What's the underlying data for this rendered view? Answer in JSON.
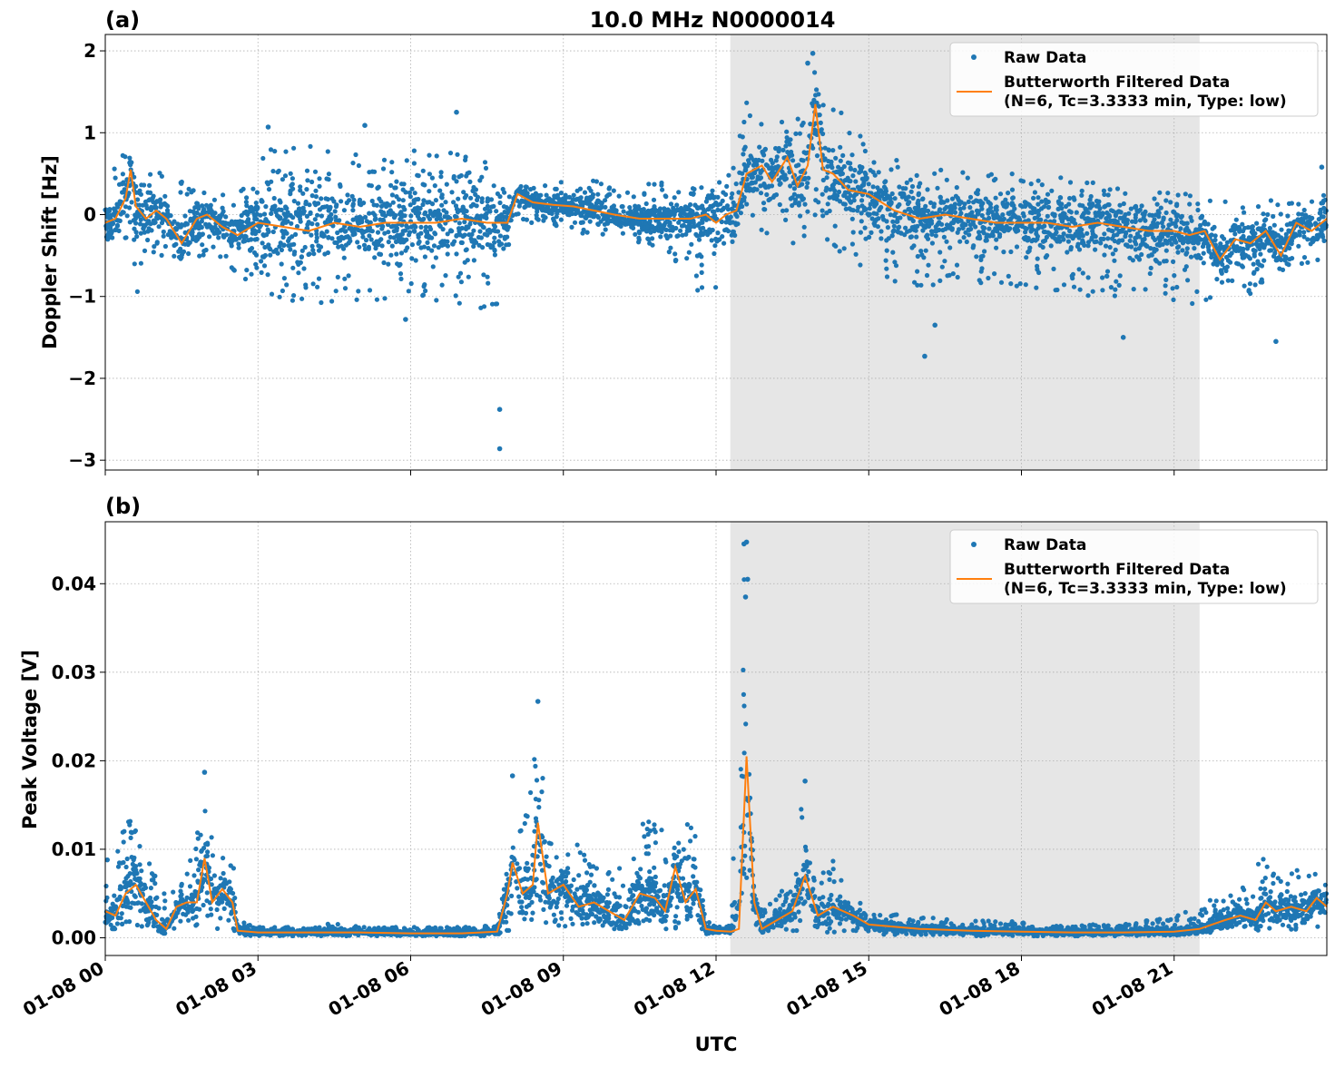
{
  "figure": {
    "title": "10.0 MHz N0000014",
    "xlabel": "UTC",
    "x_ticks": [
      "01-08 00",
      "01-08 03",
      "01-08 06",
      "01-08 09",
      "01-08 12",
      "01-08 15",
      "01-08 18",
      "01-08 21"
    ],
    "colors": {
      "raw": "#1f77b4",
      "filtered": "#ff7f0e",
      "shade": "#e6e6e6"
    }
  },
  "chart_data": [
    {
      "type": "scatter",
      "panel_label": "(a)",
      "ylabel": "Doppler Shift [Hz]",
      "xlim_hours": [
        0,
        24
      ],
      "ylim": [
        -3.12,
        2.2
      ],
      "y_ticks": [
        2,
        1,
        0,
        -1,
        -2,
        -3
      ],
      "y_tick_labels": [
        "2",
        "1",
        "0",
        "−1",
        "−2",
        "−3"
      ],
      "grid": true,
      "legend": {
        "placement": "top-right",
        "raw_label": "Raw Data",
        "filtered_line1": "Butterworth Filtered Data",
        "filtered_line2": "(N=6, Tc=3.3333 min, Type: low)"
      },
      "shaded_region_hours": [
        12.28,
        21.5
      ],
      "series": [
        {
          "name": "Raw Data",
          "style": "dots",
          "envelope": {
            "x": [
              0,
              0.4,
              0.6,
              1,
              1.5,
              2,
              2.6,
              3,
              4,
              5,
              6,
              7,
              7.7,
              8,
              8.5,
              9,
              10,
              11,
              11.7,
              12,
              12.3,
              12.6,
              13,
              13.5,
              14,
              14.5,
              15,
              16,
              17,
              18,
              19,
              20,
              21,
              21.5,
              22,
              22.5,
              23,
              24
            ],
            "upper": [
              0.4,
              0.82,
              0.5,
              0.55,
              0.4,
              0.3,
              0.2,
              0.8,
              0.85,
              0.75,
              0.8,
              0.75,
              0.6,
              0.45,
              0.35,
              0.4,
              0.45,
              0.4,
              0.35,
              0.6,
              0.7,
              1.4,
              1.2,
              1.1,
              1.9,
              1.2,
              0.9,
              0.6,
              0.5,
              0.5,
              0.45,
              0.35,
              0.35,
              0.2,
              0.2,
              0.1,
              0.2,
              0.3
            ],
            "lower": [
              -0.5,
              -0.3,
              -1.0,
              -0.5,
              -0.6,
              -0.6,
              -0.7,
              -1.0,
              -1.1,
              -1.1,
              -1.0,
              -1.1,
              -1.2,
              -0.1,
              -0.1,
              -0.2,
              -0.3,
              -0.4,
              -1.0,
              -0.9,
              -0.9,
              0.1,
              -0.3,
              -0.4,
              -0.2,
              -0.5,
              -0.8,
              -0.9,
              -0.9,
              -0.9,
              -1.0,
              -1.0,
              -1.1,
              -1.1,
              -0.9,
              -1.0,
              -0.7,
              -0.6
            ]
          },
          "outliers": [
            [
              7.75,
              -2.38
            ],
            [
              7.75,
              -2.86
            ],
            [
              6.9,
              1.25
            ],
            [
              3.2,
              1.07
            ],
            [
              5.1,
              1.09
            ],
            [
              13.9,
              1.97
            ],
            [
              13.8,
              1.85
            ],
            [
              16.1,
              -1.73
            ],
            [
              20.0,
              -1.5
            ],
            [
              23.0,
              -1.55
            ],
            [
              23.9,
              0.58
            ],
            [
              16.3,
              -1.35
            ],
            [
              5.9,
              -1.28
            ]
          ]
        },
        {
          "name": "Butterworth Filtered Data",
          "style": "line",
          "x": [
            0,
            0.2,
            0.4,
            0.5,
            0.6,
            0.8,
            1,
            1.2,
            1.5,
            1.8,
            2,
            2.3,
            2.6,
            3,
            3.5,
            4,
            4.5,
            5,
            5.5,
            6,
            6.5,
            7,
            7.5,
            7.9,
            8.1,
            8.4,
            8.8,
            9.2,
            9.6,
            10,
            10.5,
            11,
            11.5,
            11.8,
            12,
            12.2,
            12.4,
            12.6,
            12.9,
            13.1,
            13.4,
            13.6,
            13.8,
            13.95,
            14.1,
            14.3,
            14.6,
            15,
            15.5,
            16,
            16.5,
            17,
            17.5,
            18,
            18.5,
            19,
            19.5,
            20,
            20.5,
            21,
            21.3,
            21.6,
            21.9,
            22.2,
            22.5,
            22.8,
            23.1,
            23.4,
            23.7,
            24
          ],
          "y": [
            -0.1,
            -0.05,
            0.2,
            0.55,
            0.1,
            -0.05,
            0.05,
            -0.05,
            -0.35,
            -0.05,
            0.0,
            -0.15,
            -0.25,
            -0.1,
            -0.15,
            -0.2,
            -0.1,
            -0.15,
            -0.1,
            -0.1,
            -0.1,
            -0.05,
            -0.1,
            -0.1,
            0.25,
            0.15,
            0.12,
            0.1,
            0.05,
            0.0,
            -0.05,
            -0.05,
            -0.05,
            0.0,
            -0.1,
            0.0,
            0.05,
            0.5,
            0.6,
            0.4,
            0.7,
            0.35,
            0.6,
            1.35,
            0.55,
            0.5,
            0.3,
            0.25,
            0.05,
            -0.05,
            0.0,
            -0.05,
            -0.1,
            -0.1,
            -0.1,
            -0.15,
            -0.1,
            -0.15,
            -0.2,
            -0.2,
            -0.25,
            -0.2,
            -0.55,
            -0.3,
            -0.35,
            -0.2,
            -0.5,
            -0.1,
            -0.2,
            -0.05
          ]
        }
      ]
    },
    {
      "type": "scatter",
      "panel_label": "(b)",
      "ylabel": "Peak Voltage [V]",
      "xlim_hours": [
        0,
        24
      ],
      "ylim": [
        -0.002,
        0.047
      ],
      "y_ticks": [
        0.04,
        0.03,
        0.02,
        0.01,
        0.0
      ],
      "y_tick_labels": [
        "0.04",
        "0.03",
        "0.02",
        "0.01",
        "0.00"
      ],
      "grid": true,
      "legend": {
        "placement": "top-right",
        "raw_label": "Raw Data",
        "filtered_line1": "Butterworth Filtered Data",
        "filtered_line2": "(N=6, Tc=3.3333 min, Type: low)"
      },
      "shaded_region_hours": [
        12.28,
        21.5
      ],
      "series": [
        {
          "name": "Raw Data",
          "style": "dots",
          "envelope": {
            "x": [
              0,
              0.3,
              0.5,
              0.8,
              1,
              1.2,
              1.5,
              1.7,
              1.9,
              2.1,
              2.3,
              2.5,
              2.6,
              3,
              4,
              4.6,
              5,
              6,
              7,
              7.7,
              8,
              8.3,
              8.5,
              8.7,
              9,
              9.3,
              9.6,
              10,
              10.3,
              10.6,
              10.9,
              11.1,
              11.3,
              11.6,
              11.8,
              12,
              12.3,
              12.5,
              12.6,
              12.7,
              12.9,
              13.2,
              13.5,
              13.7,
              13.9,
              14.2,
              14.5,
              15,
              16,
              17,
              18,
              19,
              20,
              21,
              21.5,
              22,
              22.5,
              22.8,
              23,
              23.3,
              23.6,
              24
            ],
            "upper": [
              0.009,
              0.012,
              0.0135,
              0.011,
              0.007,
              0.005,
              0.006,
              0.01,
              0.0185,
              0.011,
              0.009,
              0.0105,
              0.002,
              0.0012,
              0.0012,
              0.0018,
              0.0012,
              0.0012,
              0.0012,
              0.0014,
              0.011,
              0.016,
              0.0265,
              0.012,
              0.009,
              0.013,
              0.008,
              0.009,
              0.011,
              0.014,
              0.013,
              0.009,
              0.0125,
              0.014,
              0.002,
              0.0015,
              0.0015,
              0.045,
              0.045,
              0.012,
              0.003,
              0.005,
              0.006,
              0.017,
              0.007,
              0.01,
              0.006,
              0.003,
              0.0025,
              0.002,
              0.0018,
              0.0015,
              0.0015,
              0.0025,
              0.0035,
              0.0055,
              0.006,
              0.011,
              0.008,
              0.008,
              0.0075,
              0.007
            ],
            "lower": [
              0.001,
              0.001,
              0.0015,
              0.001,
              0.0005,
              0.0005,
              0.001,
              0.001,
              0.002,
              0.001,
              0.001,
              0.001,
              0.0003,
              0.0002,
              0.0002,
              0.0002,
              0.0002,
              0.0002,
              0.0002,
              0.0002,
              0.001,
              0.002,
              0.002,
              0.001,
              0.001,
              0.0015,
              0.001,
              0.001,
              0.001,
              0.002,
              0.001,
              0.001,
              0.001,
              0.001,
              0.0003,
              0.0002,
              0.0002,
              0.005,
              0.006,
              0.001,
              0.0003,
              0.0005,
              0.0006,
              0.0008,
              0.0006,
              0.0006,
              0.0005,
              0.0003,
              0.0003,
              0.0002,
              0.0002,
              0.0002,
              0.0002,
              0.0003,
              0.0005,
              0.0007,
              0.0008,
              0.0009,
              0.0008,
              0.0008,
              0.0008,
              0.0008
            ]
          },
          "outliers": [
            [
              12.6,
              0.0447
            ],
            [
              12.55,
              0.0445
            ],
            [
              8.5,
              0.0267
            ],
            [
              1.95,
              0.0187
            ],
            [
              13.75,
              0.0177
            ],
            [
              8.0,
              0.0183
            ],
            [
              12.62,
              0.0405
            ],
            [
              12.58,
              0.0385
            ]
          ]
        },
        {
          "name": "Butterworth Filtered Data",
          "style": "line",
          "x": [
            0,
            0.2,
            0.4,
            0.6,
            0.8,
            1,
            1.2,
            1.4,
            1.6,
            1.8,
            1.95,
            2.1,
            2.3,
            2.5,
            2.6,
            3,
            4,
            5,
            6,
            7,
            7.7,
            7.9,
            8.0,
            8.2,
            8.4,
            8.5,
            8.7,
            9,
            9.3,
            9.6,
            9.9,
            10.2,
            10.5,
            10.8,
            11.0,
            11.2,
            11.4,
            11.6,
            11.8,
            12,
            12.3,
            12.45,
            12.6,
            12.75,
            12.9,
            13.2,
            13.5,
            13.75,
            14,
            14.3,
            14.7,
            15,
            16,
            17,
            18,
            19,
            20,
            21,
            21.5,
            22,
            22.3,
            22.6,
            22.8,
            23,
            23.3,
            23.6,
            23.8,
            24
          ],
          "y": [
            0.003,
            0.0025,
            0.005,
            0.006,
            0.004,
            0.002,
            0.001,
            0.0035,
            0.004,
            0.004,
            0.009,
            0.004,
            0.0055,
            0.004,
            0.0008,
            0.0006,
            0.0006,
            0.0006,
            0.0005,
            0.0005,
            0.0007,
            0.005,
            0.0085,
            0.005,
            0.006,
            0.013,
            0.005,
            0.006,
            0.0035,
            0.004,
            0.003,
            0.002,
            0.005,
            0.0045,
            0.003,
            0.008,
            0.004,
            0.0055,
            0.001,
            0.0008,
            0.0007,
            0.001,
            0.0205,
            0.004,
            0.001,
            0.002,
            0.003,
            0.007,
            0.0025,
            0.0035,
            0.0025,
            0.0015,
            0.001,
            0.0008,
            0.0007,
            0.0006,
            0.0006,
            0.0007,
            0.001,
            0.002,
            0.0025,
            0.002,
            0.004,
            0.003,
            0.0035,
            0.003,
            0.0045,
            0.0035
          ]
        }
      ]
    }
  ]
}
